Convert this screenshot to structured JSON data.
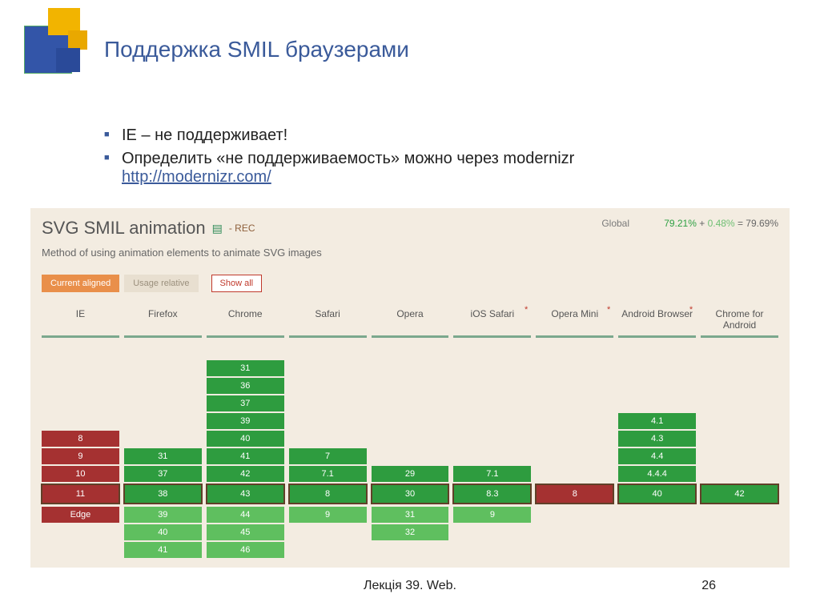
{
  "slide": {
    "title": "Поддержка SMIL браузерами",
    "bullets": [
      {
        "text": "IE – не поддерживает!"
      },
      {
        "text": "Определить «не поддерживаемость» можно через modernizr",
        "link_text": "http://modernizr.com/",
        "link_href": "http://modernizr.com/"
      }
    ],
    "footer": "Лекція 39. Web.",
    "page": "26"
  },
  "caniuse": {
    "title": "SVG SMIL animation",
    "rec": "- REC",
    "subtitle": "Method of using animation elements to animate SVG images",
    "global_label": "Global",
    "stats": {
      "supported": "79.21%",
      "partial": "0.48%",
      "total": "79.69%"
    },
    "tabs": {
      "current": "Current aligned",
      "usage": "Usage relative",
      "showall": "Show all"
    },
    "browsers": [
      {
        "name": "IE",
        "star": false
      },
      {
        "name": "Firefox",
        "star": false
      },
      {
        "name": "Chrome",
        "star": false
      },
      {
        "name": "Safari",
        "star": false
      },
      {
        "name": "Opera",
        "star": false
      },
      {
        "name": "iOS Safari",
        "star": true
      },
      {
        "name": "Opera Mini",
        "star": true
      },
      {
        "name": "Android Browser",
        "star": true
      },
      {
        "name": "Chrome for Android",
        "star": false
      }
    ],
    "colors": {
      "green": "#2e9c3f",
      "lightgreen": "#5fbf5f",
      "red": "#a53131",
      "panel_bg": "#f3ece1",
      "header_border": "#7ba88d",
      "highlight_border": "#593d1e",
      "tab_active_bg": "#e98f4a"
    },
    "pre_current": [
      [
        {
          "v": "8",
          "c": "red"
        },
        {
          "v": "9",
          "c": "red"
        },
        {
          "v": "10",
          "c": "red"
        }
      ],
      [
        {
          "v": "31",
          "c": "green"
        },
        {
          "v": "37",
          "c": "green"
        }
      ],
      [
        {
          "v": "31",
          "c": "green"
        },
        {
          "v": "36",
          "c": "green"
        },
        {
          "v": "37",
          "c": "green"
        },
        {
          "v": "39",
          "c": "green"
        },
        {
          "v": "40",
          "c": "green"
        },
        {
          "v": "41",
          "c": "green"
        },
        {
          "v": "42",
          "c": "green"
        }
      ],
      [
        {
          "v": "7",
          "c": "green"
        },
        {
          "v": "7.1",
          "c": "green"
        }
      ],
      [
        {
          "v": "29",
          "c": "green"
        }
      ],
      [
        {
          "v": "7.1",
          "c": "green"
        }
      ],
      [],
      [
        {
          "v": "4.1",
          "c": "green"
        },
        {
          "v": "4.3",
          "c": "green"
        },
        {
          "v": "4.4",
          "c": "green"
        },
        {
          "v": "4.4.4",
          "c": "green"
        }
      ],
      []
    ],
    "current_row": [
      {
        "v": "11",
        "c": "red"
      },
      {
        "v": "38",
        "c": "green"
      },
      {
        "v": "43",
        "c": "green"
      },
      {
        "v": "8",
        "c": "green"
      },
      {
        "v": "30",
        "c": "green"
      },
      {
        "v": "8.3",
        "c": "green"
      },
      {
        "v": "8",
        "c": "red"
      },
      {
        "v": "40",
        "c": "green"
      },
      {
        "v": "42",
        "c": "green"
      }
    ],
    "post_current": [
      [
        {
          "v": "Edge",
          "c": "red"
        }
      ],
      [
        {
          "v": "39",
          "c": "lightgreen"
        },
        {
          "v": "40",
          "c": "lightgreen"
        },
        {
          "v": "41",
          "c": "lightgreen"
        }
      ],
      [
        {
          "v": "44",
          "c": "lightgreen"
        },
        {
          "v": "45",
          "c": "lightgreen"
        },
        {
          "v": "46",
          "c": "lightgreen"
        }
      ],
      [
        {
          "v": "9",
          "c": "lightgreen"
        }
      ],
      [
        {
          "v": "31",
          "c": "lightgreen"
        },
        {
          "v": "32",
          "c": "lightgreen"
        }
      ],
      [
        {
          "v": "9",
          "c": "lightgreen"
        }
      ],
      [],
      [],
      []
    ]
  }
}
